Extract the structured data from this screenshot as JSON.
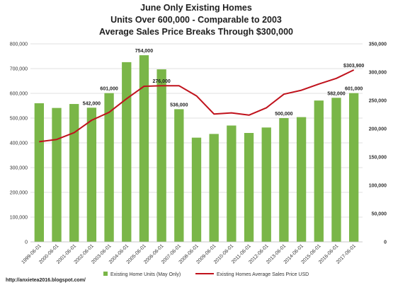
{
  "chart_data": {
    "type": "bar",
    "title_lines": [
      "June Only Existing Homes",
      "Units Over 600,000 - Comparable to 2003",
      "Average Sales Price Breaks Through $300,000"
    ],
    "categories": [
      "1999-06-01",
      "2000-06-01",
      "2001-06-01",
      "2002-06-01",
      "2003-06-01",
      "2004-06-01",
      "2005-06-01",
      "2006-06-01",
      "2007-06-01",
      "2008-06-01",
      "2009-06-01",
      "2010-06-01",
      "2011-06-01",
      "2012-06-01",
      "2013-06-01",
      "2014-06-01",
      "2015-06-01",
      "2016-06-01",
      "2017-06-01"
    ],
    "series": [
      {
        "name": "Existing Home Units (May Only)",
        "type": "bar",
        "axis": "left",
        "color": "#7ab648",
        "values": [
          560000,
          541000,
          557000,
          542000,
          601000,
          726000,
          754000,
          697000,
          536000,
          421000,
          436000,
          470000,
          440000,
          462000,
          500000,
          504000,
          571000,
          582000,
          601000
        ]
      },
      {
        "name": "Existing Homes Average Sales Price USD",
        "type": "line",
        "axis": "right",
        "color": "#c0121c",
        "values": [
          177000,
          181000,
          193000,
          215000,
          229000,
          253000,
          275000,
          276000,
          276000,
          258000,
          226000,
          228000,
          224000,
          237000,
          261000,
          268000,
          279000,
          289000,
          303900
        ]
      }
    ],
    "data_labels": [
      {
        "series": 0,
        "index": 3,
        "text": "542,000"
      },
      {
        "series": 0,
        "index": 4,
        "text": "601,000"
      },
      {
        "series": 0,
        "index": 6,
        "text": "754,000"
      },
      {
        "series": 1,
        "index": 7,
        "text": "276,000"
      },
      {
        "series": 0,
        "index": 8,
        "text": "536,000"
      },
      {
        "series": 0,
        "index": 14,
        "text": "500,000"
      },
      {
        "series": 0,
        "index": 17,
        "text": "582,000"
      },
      {
        "series": 0,
        "index": 18,
        "text": "601,000"
      },
      {
        "series": 1,
        "index": 18,
        "text": "$303,900"
      }
    ],
    "y_left": {
      "ylim": [
        0,
        800000
      ],
      "ticks": [
        "0",
        "100,000",
        "200,000",
        "300,000",
        "400,000",
        "500,000",
        "600,000",
        "700,000",
        "800,000"
      ]
    },
    "y_right": {
      "ylim": [
        0,
        350000
      ],
      "ticks": [
        "0",
        "50,000",
        "100,000",
        "150,000",
        "200,000",
        "250,000",
        "300,000",
        "350,000"
      ]
    },
    "grid": true,
    "legend_position": "bottom"
  },
  "footer": {
    "url": "http://anxietea2016.blogspot.com/"
  }
}
